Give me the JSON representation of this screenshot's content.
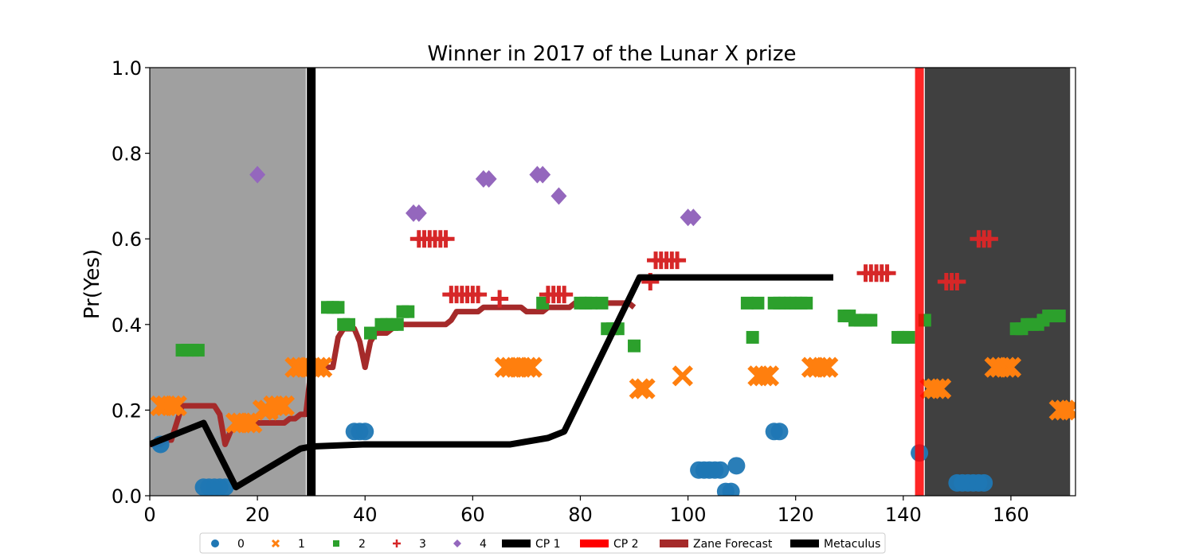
{
  "chart_data": {
    "type": "scatter",
    "title": "Winner in 2017 of the Lunar X prize",
    "xlabel": "",
    "ylabel": "Pr(Yes)",
    "xlim": [
      0,
      172
    ],
    "ylim": [
      0,
      1
    ],
    "x_ticks": [
      0,
      20,
      40,
      60,
      80,
      100,
      120,
      140,
      160
    ],
    "y_ticks": [
      0.0,
      0.2,
      0.4,
      0.6,
      0.8,
      1.0
    ],
    "y_tick_labels": [
      "0.0",
      "0.2",
      "0.4",
      "0.6",
      "0.8",
      "1.0"
    ],
    "grid": false,
    "legend_position": "bottom",
    "regions": [
      {
        "x0": 0,
        "x1": 29,
        "color": "#a0a0a0"
      },
      {
        "x0": 144,
        "x1": 171,
        "color": "#404040"
      }
    ],
    "vertical_lines": [
      {
        "name": "CP 1",
        "x": 30,
        "color": "#000000"
      },
      {
        "name": "CP 2",
        "x": 143,
        "color": "#ff0000"
      }
    ],
    "scatter_series": [
      {
        "name": "0",
        "marker": "circle",
        "color": "#1f77b4",
        "points": [
          [
            2,
            0.12
          ],
          [
            10,
            0.02
          ],
          [
            11,
            0.02
          ],
          [
            12,
            0.02
          ],
          [
            13,
            0.02
          ],
          [
            14,
            0.02
          ],
          [
            38,
            0.15
          ],
          [
            39,
            0.15
          ],
          [
            40,
            0.15
          ],
          [
            102,
            0.06
          ],
          [
            103,
            0.06
          ],
          [
            104,
            0.06
          ],
          [
            105,
            0.06
          ],
          [
            106,
            0.06
          ],
          [
            107,
            0.01
          ],
          [
            108,
            0.01
          ],
          [
            109,
            0.07
          ],
          [
            116,
            0.15
          ],
          [
            117,
            0.15
          ],
          [
            143,
            0.1
          ],
          [
            150,
            0.03
          ],
          [
            151,
            0.03
          ],
          [
            152,
            0.03
          ],
          [
            153,
            0.03
          ],
          [
            154,
            0.03
          ],
          [
            155,
            0.03
          ]
        ]
      },
      {
        "name": "1",
        "marker": "x",
        "color": "#ff7f0e",
        "points": [
          [
            2,
            0.21
          ],
          [
            3,
            0.21
          ],
          [
            4,
            0.21
          ],
          [
            5,
            0.21
          ],
          [
            16,
            0.17
          ],
          [
            17,
            0.17
          ],
          [
            18,
            0.17
          ],
          [
            19,
            0.17
          ],
          [
            21,
            0.2
          ],
          [
            22,
            0.2
          ],
          [
            23,
            0.21
          ],
          [
            24,
            0.21
          ],
          [
            25,
            0.21
          ],
          [
            27,
            0.3
          ],
          [
            28,
            0.3
          ],
          [
            29,
            0.3
          ],
          [
            30,
            0.3
          ],
          [
            31,
            0.3
          ],
          [
            32,
            0.3
          ],
          [
            66,
            0.3
          ],
          [
            67,
            0.3
          ],
          [
            68,
            0.3
          ],
          [
            69,
            0.3
          ],
          [
            70,
            0.3
          ],
          [
            71,
            0.3
          ],
          [
            91,
            0.25
          ],
          [
            92,
            0.25
          ],
          [
            99,
            0.28
          ],
          [
            113,
            0.28
          ],
          [
            114,
            0.28
          ],
          [
            115,
            0.28
          ],
          [
            123,
            0.3
          ],
          [
            124,
            0.3
          ],
          [
            125,
            0.3
          ],
          [
            126,
            0.3
          ],
          [
            145,
            0.25
          ],
          [
            146,
            0.25
          ],
          [
            147,
            0.25
          ],
          [
            157,
            0.3
          ],
          [
            158,
            0.3
          ],
          [
            159,
            0.3
          ],
          [
            160,
            0.3
          ],
          [
            169,
            0.2
          ],
          [
            170,
            0.2
          ],
          [
            171,
            0.2
          ]
        ]
      },
      {
        "name": "2",
        "marker": "square",
        "color": "#2ca02c",
        "points": [
          [
            6,
            0.34
          ],
          [
            7,
            0.34
          ],
          [
            8,
            0.34
          ],
          [
            9,
            0.34
          ],
          [
            33,
            0.44
          ],
          [
            34,
            0.44
          ],
          [
            35,
            0.44
          ],
          [
            36,
            0.4
          ],
          [
            37,
            0.4
          ],
          [
            41,
            0.38
          ],
          [
            43,
            0.4
          ],
          [
            44,
            0.4
          ],
          [
            45,
            0.4
          ],
          [
            46,
            0.4
          ],
          [
            47,
            0.43
          ],
          [
            48,
            0.43
          ],
          [
            73,
            0.45
          ],
          [
            80,
            0.45
          ],
          [
            81,
            0.45
          ],
          [
            82,
            0.45
          ],
          [
            84,
            0.45
          ],
          [
            85,
            0.39
          ],
          [
            86,
            0.39
          ],
          [
            87,
            0.39
          ],
          [
            90,
            0.35
          ],
          [
            111,
            0.45
          ],
          [
            112,
            0.37
          ],
          [
            113,
            0.45
          ],
          [
            116,
            0.45
          ],
          [
            117,
            0.45
          ],
          [
            118,
            0.45
          ],
          [
            119,
            0.45
          ],
          [
            120,
            0.45
          ],
          [
            121,
            0.45
          ],
          [
            122,
            0.45
          ],
          [
            129,
            0.42
          ],
          [
            130,
            0.42
          ],
          [
            131,
            0.41
          ],
          [
            132,
            0.41
          ],
          [
            133,
            0.41
          ],
          [
            134,
            0.41
          ],
          [
            139,
            0.37
          ],
          [
            140,
            0.37
          ],
          [
            141,
            0.37
          ],
          [
            144,
            0.41
          ],
          [
            161,
            0.39
          ],
          [
            162,
            0.39
          ],
          [
            163,
            0.4
          ],
          [
            164,
            0.4
          ],
          [
            165,
            0.4
          ],
          [
            166,
            0.41
          ],
          [
            167,
            0.42
          ],
          [
            168,
            0.42
          ],
          [
            169,
            0.42
          ]
        ]
      },
      {
        "name": "3",
        "marker": "plus",
        "color": "#d62728",
        "points": [
          [
            50,
            0.6
          ],
          [
            51,
            0.6
          ],
          [
            52,
            0.6
          ],
          [
            53,
            0.6
          ],
          [
            54,
            0.6
          ],
          [
            55,
            0.6
          ],
          [
            56,
            0.47
          ],
          [
            57,
            0.47
          ],
          [
            58,
            0.47
          ],
          [
            59,
            0.47
          ],
          [
            60,
            0.47
          ],
          [
            61,
            0.47
          ],
          [
            65,
            0.46
          ],
          [
            74,
            0.47
          ],
          [
            75,
            0.47
          ],
          [
            76,
            0.47
          ],
          [
            77,
            0.47
          ],
          [
            93,
            0.5
          ],
          [
            94,
            0.55
          ],
          [
            95,
            0.55
          ],
          [
            96,
            0.55
          ],
          [
            97,
            0.55
          ],
          [
            98,
            0.55
          ],
          [
            133,
            0.52
          ],
          [
            134,
            0.52
          ],
          [
            135,
            0.52
          ],
          [
            136,
            0.52
          ],
          [
            137,
            0.52
          ],
          [
            148,
            0.5
          ],
          [
            149,
            0.5
          ],
          [
            150,
            0.5
          ],
          [
            154,
            0.6
          ],
          [
            155,
            0.6
          ],
          [
            156,
            0.6
          ]
        ]
      },
      {
        "name": "4",
        "marker": "diamond",
        "color": "#9467bd",
        "points": [
          [
            20,
            0.75
          ],
          [
            49,
            0.66
          ],
          [
            50,
            0.66
          ],
          [
            62,
            0.74
          ],
          [
            63,
            0.74
          ],
          [
            72,
            0.75
          ],
          [
            73,
            0.75
          ],
          [
            76,
            0.7
          ],
          [
            100,
            0.65
          ],
          [
            101,
            0.65
          ]
        ]
      }
    ],
    "line_series": [
      {
        "name": "Zane Forecast",
        "color": "#a52a2a",
        "x": [
          0,
          2,
          3,
          4,
          5,
          6,
          7,
          8,
          9,
          10,
          11,
          12,
          13,
          14,
          15,
          16,
          17,
          18,
          19,
          20,
          21,
          22,
          23,
          24,
          25,
          26,
          27,
          28,
          29,
          30,
          31,
          32,
          33,
          34,
          35,
          36,
          37,
          38,
          39,
          40,
          41,
          42,
          43,
          44,
          45,
          46,
          47,
          48,
          49,
          50,
          51,
          52,
          53,
          54,
          55,
          56,
          57,
          58,
          59,
          60,
          61,
          62,
          63,
          64,
          65,
          66,
          67,
          68,
          69,
          70,
          71,
          72,
          73,
          74,
          75,
          76,
          77,
          78,
          79,
          80,
          81,
          82,
          83,
          84,
          85,
          86,
          87,
          88,
          89,
          90
        ],
        "y": [
          0.12,
          0.12,
          0.13,
          0.13,
          0.17,
          0.21,
          0.21,
          0.21,
          0.21,
          0.21,
          0.21,
          0.21,
          0.19,
          0.12,
          0.15,
          0.17,
          0.17,
          0.17,
          0.17,
          0.17,
          0.17,
          0.17,
          0.17,
          0.17,
          0.17,
          0.18,
          0.18,
          0.19,
          0.19,
          0.3,
          0.3,
          0.3,
          0.3,
          0.3,
          0.37,
          0.39,
          0.39,
          0.39,
          0.36,
          0.3,
          0.36,
          0.38,
          0.38,
          0.38,
          0.39,
          0.4,
          0.4,
          0.4,
          0.4,
          0.4,
          0.4,
          0.4,
          0.4,
          0.4,
          0.4,
          0.41,
          0.43,
          0.43,
          0.43,
          0.43,
          0.43,
          0.44,
          0.44,
          0.44,
          0.44,
          0.44,
          0.44,
          0.44,
          0.44,
          0.43,
          0.43,
          0.43,
          0.43,
          0.44,
          0.44,
          0.44,
          0.44,
          0.44,
          0.45,
          0.45,
          0.45,
          0.45,
          0.45,
          0.45,
          0.45,
          0.45,
          0.45,
          0.45,
          0.45,
          0.44
        ]
      },
      {
        "name": "Metaculus",
        "color": "#000000",
        "x": [
          0,
          10,
          16,
          28,
          30,
          40,
          67,
          74,
          77,
          91,
          127
        ],
        "y": [
          0.12,
          0.17,
          0.02,
          0.11,
          0.115,
          0.12,
          0.12,
          0.135,
          0.15,
          0.51,
          0.51
        ]
      }
    ],
    "legend": [
      {
        "label": "0",
        "kind": "circle",
        "color": "#1f77b4"
      },
      {
        "label": "1",
        "kind": "x",
        "color": "#ff7f0e"
      },
      {
        "label": "2",
        "kind": "square",
        "color": "#2ca02c"
      },
      {
        "label": "3",
        "kind": "plus",
        "color": "#d62728"
      },
      {
        "label": "4",
        "kind": "diamond",
        "color": "#9467bd"
      },
      {
        "label": "CP 1",
        "kind": "line",
        "color": "#000000"
      },
      {
        "label": "CP 2",
        "kind": "line",
        "color": "#ff0000"
      },
      {
        "label": "Zane Forecast",
        "kind": "line",
        "color": "#a52a2a"
      },
      {
        "label": "Metaculus",
        "kind": "line",
        "color": "#000000"
      }
    ]
  }
}
